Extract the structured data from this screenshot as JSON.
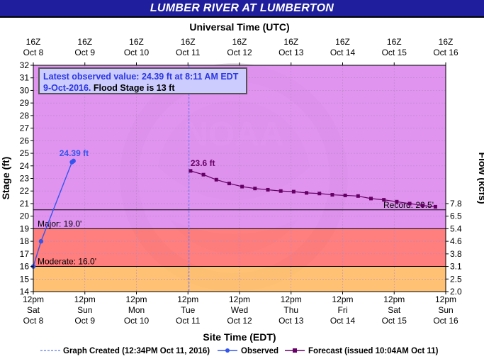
{
  "title": "LUMBER RIVER AT LUMBERTON",
  "top_axis_title": "Universal Time (UTC)",
  "bottom_axis_title": "Site Time (EDT)",
  "left_axis_title": "Stage (ft)",
  "right_axis_title": "Flow (kcfs)",
  "info_box": {
    "latest": "Latest observed value: 24.39 ft at 8:11 AM EDT 9-Oct-2016.",
    "flood_stage": "Flood Stage is 13 ft"
  },
  "legend": {
    "graph_created": "Graph Created (12:34PM Oct 11, 2016)",
    "observed": "Observed",
    "forecast": "Forecast (issued 10:04AM Oct 11)"
  },
  "colors": {
    "title_bg": "#1f1f9e",
    "plot_bg": "#dd88ee",
    "major_band": "#ff7070",
    "moderate_band": "#ffbb66",
    "observed": "#3355ee",
    "forecast": "#660066",
    "info_bg": "#ccccff"
  },
  "chart_data": {
    "type": "line",
    "x_unit": "days since Oct 8 12pm EDT",
    "xlim": [
      0,
      8
    ],
    "ylim": [
      14,
      32
    ],
    "top_ticks": [
      {
        "l1": "16Z",
        "l2": "Oct 8"
      },
      {
        "l1": "16Z",
        "l2": "Oct 9"
      },
      {
        "l1": "16Z",
        "l2": "Oct 10"
      },
      {
        "l1": "16Z",
        "l2": "Oct 11"
      },
      {
        "l1": "16Z",
        "l2": "Oct 12"
      },
      {
        "l1": "16Z",
        "l2": "Oct 13"
      },
      {
        "l1": "16Z",
        "l2": "Oct 14"
      },
      {
        "l1": "16Z",
        "l2": "Oct 15"
      },
      {
        "l1": "16Z",
        "l2": "Oct 16"
      }
    ],
    "bottom_ticks": [
      {
        "l1": "12pm",
        "l2": "Sat",
        "l3": "Oct 8"
      },
      {
        "l1": "12pm",
        "l2": "Sun",
        "l3": "Oct 9"
      },
      {
        "l1": "12pm",
        "l2": "Mon",
        "l3": "Oct 10"
      },
      {
        "l1": "12pm",
        "l2": "Tue",
        "l3": "Oct 11"
      },
      {
        "l1": "12pm",
        "l2": "Wed",
        "l3": "Oct 12"
      },
      {
        "l1": "12pm",
        "l2": "Thu",
        "l3": "Oct 13"
      },
      {
        "l1": "12pm",
        "l2": "Fri",
        "l3": "Oct 14"
      },
      {
        "l1": "12pm",
        "l2": "Sat",
        "l3": "Oct 15"
      },
      {
        "l1": "12pm",
        "l2": "Sun",
        "l3": "Oct 16"
      }
    ],
    "y_ticks": [
      14,
      15,
      16,
      17,
      18,
      19,
      20,
      21,
      22,
      23,
      24,
      25,
      26,
      27,
      28,
      29,
      30,
      31,
      32
    ],
    "flow_ticks": [
      {
        "stage": 14,
        "label": "2.0"
      },
      {
        "stage": 15,
        "label": "2.5"
      },
      {
        "stage": 16,
        "label": "3.1"
      },
      {
        "stage": 17,
        "label": "3.8"
      },
      {
        "stage": 18,
        "label": "4.6"
      },
      {
        "stage": 19,
        "label": "5.4"
      },
      {
        "stage": 20,
        "label": "6.5"
      },
      {
        "stage": 21,
        "label": "7.8"
      }
    ],
    "thresholds": [
      {
        "name": "Moderate",
        "label": "Moderate: 16.0'",
        "value": 16.0
      },
      {
        "name": "Major",
        "label": "Major: 19.0'",
        "value": 19.0
      },
      {
        "name": "Record",
        "label": "Record: 20.5'",
        "value": 20.5
      }
    ],
    "graph_created_x": 3.02,
    "observed": {
      "name": "Observed",
      "x": [
        0.0,
        0.15,
        0.75,
        0.78
      ],
      "y": [
        16.0,
        18.0,
        24.3,
        24.39
      ],
      "label": "24.39 ft"
    },
    "forecast": {
      "name": "Forecast",
      "x": [
        3.05,
        3.3,
        3.55,
        3.8,
        4.05,
        4.3,
        4.55,
        4.8,
        5.05,
        5.3,
        5.55,
        5.8,
        6.05,
        6.3,
        6.55,
        6.8,
        7.05,
        7.3,
        7.55,
        7.8
      ],
      "y": [
        23.6,
        23.3,
        22.9,
        22.6,
        22.35,
        22.2,
        22.1,
        22.0,
        21.95,
        21.85,
        21.8,
        21.7,
        21.65,
        21.6,
        21.4,
        21.3,
        21.15,
        21.0,
        20.85,
        20.75
      ],
      "label": "23.6 ft"
    }
  }
}
